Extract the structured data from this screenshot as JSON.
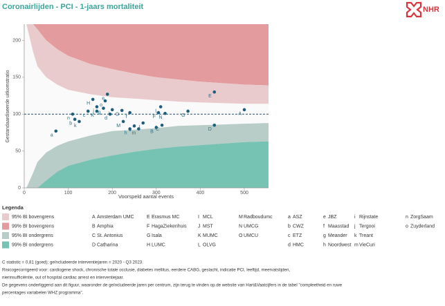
{
  "logo": "NHR",
  "chart_data": {
    "type": "scatter",
    "title": "Coronairlijden - PCI - 1-jaars mortaliteit",
    "x_label": "Voorspeld aantal events",
    "y_label": "Gestandaardiseerde uitkomstratio",
    "xlim": [
      0,
      555
    ],
    "ylim": [
      0,
      222
    ],
    "xticks": [
      0,
      100,
      200,
      300,
      400,
      500
    ],
    "yticks": [
      0,
      50,
      100,
      150,
      200
    ],
    "reference_line": 100,
    "legend_title": "Legenda",
    "bands": {
      "x": [
        5,
        20,
        30,
        50,
        75,
        100,
        150,
        200,
        250,
        300,
        350,
        400,
        450,
        500,
        555
      ],
      "series": [
        {
          "name": "95% BI bovengrens",
          "color": "#e9cbcd",
          "values": [
            222,
            185,
            165,
            150,
            140,
            133,
            127,
            123,
            121,
            119,
            117,
            116,
            115,
            114,
            114
          ]
        },
        {
          "name": "99% BI bovengrens",
          "color": "#e49b9e",
          "values": [
            222,
            222,
            215,
            200,
            188,
            179,
            168,
            161,
            155,
            150,
            147,
            144,
            142,
            140,
            139
          ]
        },
        {
          "name": "95% BI ondergrens",
          "color": "#b8ccc8",
          "values": [
            0,
            20,
            35,
            48,
            57,
            63,
            71,
            77,
            79,
            81,
            84,
            85,
            86,
            87,
            88
          ]
        },
        {
          "name": "99% BI ondergrens",
          "color": "#76c3b3",
          "values": [
            0,
            0,
            0,
            10,
            22,
            30,
            38,
            44,
            49,
            53,
            56,
            58,
            60,
            62,
            63
          ]
        }
      ]
    },
    "points": {
      "color": "#1d5f7a",
      "labels": [
        "A",
        "B",
        "C",
        "D",
        "E",
        "F",
        "G",
        "H",
        "I",
        "J",
        "K",
        "L",
        "M",
        "N",
        "O",
        "a",
        "b",
        "c",
        "d",
        "e",
        "f",
        "g",
        "h",
        "i",
        "j",
        "k",
        "m",
        "n",
        "o"
      ],
      "names": [
        "Amsterdam UMC",
        "Amphia",
        "St. Antonius",
        "Catharina",
        "Erasmus MC",
        "HagaZiekenhuis",
        "Isala",
        "LUMC",
        "MCL",
        "MST",
        "MUMC",
        "OLVG",
        "Radboudumc",
        "UMCG",
        "UMCU",
        "ASZ",
        "CWZ",
        "ETZ",
        "HMC",
        "JBZ",
        "Maasstad",
        "Meander",
        "Noordwest",
        "Rijnstate",
        "Tergooi",
        "Treant",
        "VieCuri",
        "ZorgSaam",
        "Zuyderland"
      ],
      "x": [
        500,
        300,
        313,
        432,
        432,
        305,
        372,
        156,
        270,
        250,
        165,
        310,
        225,
        320,
        222,
        72,
        115,
        145,
        195,
        189,
        240,
        180,
        240,
        200,
        165,
        125,
        260,
        110,
        184
      ],
      "y": [
        106,
        82,
        85,
        85,
        130,
        102,
        104,
        120,
        88,
        84,
        104,
        110,
        90,
        101,
        105,
        77,
        93,
        104,
        100,
        127,
        102,
        108,
        80,
        106,
        110,
        90,
        80,
        100,
        118
      ]
    },
    "footnotes": [
      "C statistic = 0,81 (goed); geïncludeerde interventiejaren = 2020 - Q3 2023.",
      "Risicogecorrigeerd voor: cardiogene shock, chronische totale occlusie, diabetes mellitus, eerdere CABG, geslacht, indicatie PCI, leeftijd, meervatslijden,",
      "nierinsufficiëntie, out of hospital cardiac arrest en interventiejaar.",
      "De gegevens onderliggend aan dit figuur, waaronder de geïncludeerde jaren per centrum, zijn terug te vinden op de website van Hart&Vaatcijfers in de tabel \"compleetheid en ruwe",
      "percentages variabelen WHZ programma\"."
    ]
  }
}
